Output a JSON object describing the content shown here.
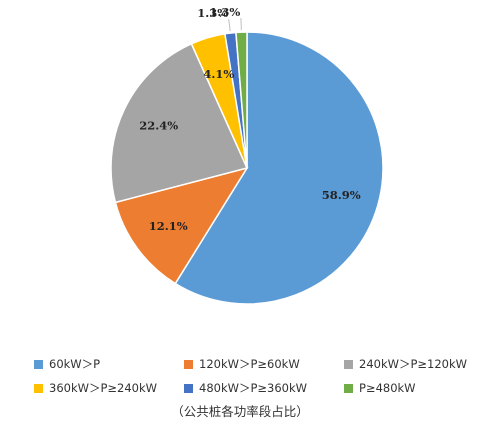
{
  "chart_data": {
    "type": "pie",
    "slices": [
      {
        "name": "60kW＞P",
        "value": 58.9,
        "label": "58.9%",
        "color": "#5B9BD5"
      },
      {
        "name": "120kW＞P≥60kW",
        "value": 12.1,
        "label": "12.1%",
        "color": "#ED7D31"
      },
      {
        "name": "240kW＞P≥120kW",
        "value": 22.4,
        "label": "22.4%",
        "color": "#A5A5A5"
      },
      {
        "name": "360kW＞P≥240kW",
        "value": 4.1,
        "label": "4.1%",
        "color": "#FFC000"
      },
      {
        "name": "480kW＞P≥360kW",
        "value": 1.3,
        "label": "1.3%",
        "color": "#4472C4"
      },
      {
        "name": "P≥480kW",
        "value": 1.3,
        "label": "1.3%",
        "color": "#70AD47"
      }
    ],
    "start_angle_deg": 0,
    "direction": "clockwise",
    "legend_position": "bottom"
  },
  "caption": "（公共桩各功率段占比）"
}
